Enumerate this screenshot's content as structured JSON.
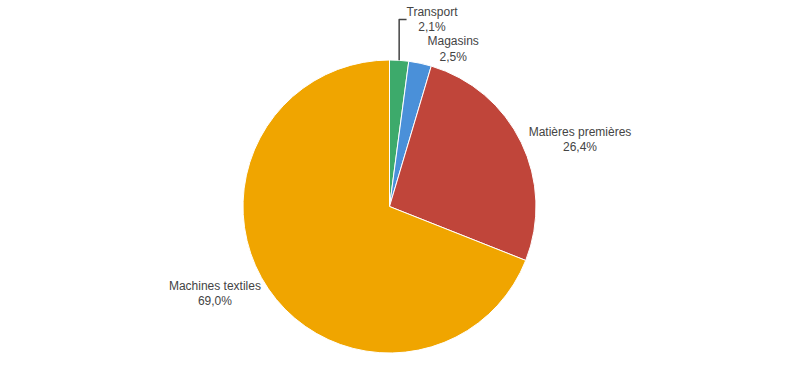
{
  "chart_data": {
    "type": "pie",
    "categories": [
      "Transport",
      "Magasins",
      "Matières premières",
      "Machines textiles"
    ],
    "values": [
      2.1,
      2.5,
      26.4,
      69.0
    ],
    "value_labels": [
      "2,1%",
      "2,5%",
      "26,4%",
      "69,0%"
    ],
    "colors": [
      "#3DAA6B",
      "#4A90D9",
      "#C0453A",
      "#F0A500"
    ],
    "data_labels": true
  }
}
